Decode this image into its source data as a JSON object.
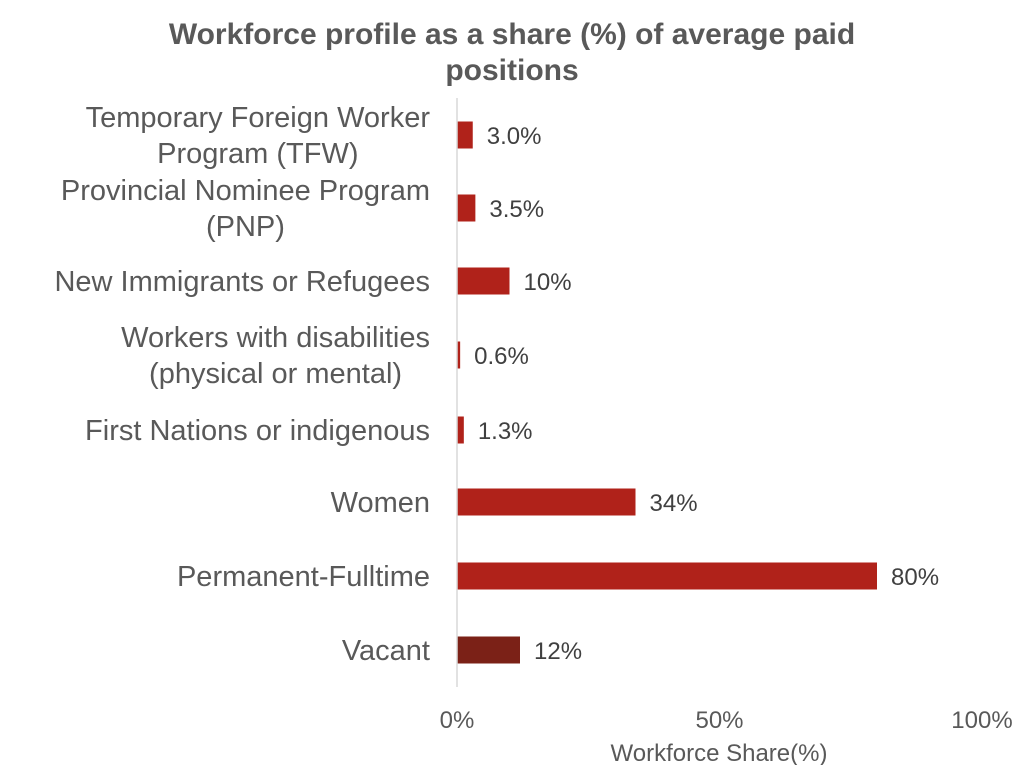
{
  "chart_data": {
    "type": "bar",
    "orientation": "horizontal",
    "title": "Workforce profile as a share (%) of average paid positions",
    "xlabel": "Workforce Share(%)",
    "ylabel": "",
    "xlim": [
      0,
      100
    ],
    "x_ticks": [
      0,
      50,
      100
    ],
    "x_tick_labels": [
      "0%",
      "50%",
      "100%"
    ],
    "grid": false,
    "legend": "none",
    "categories": [
      [
        "Temporary Foreign Worker",
        "Program (TFW)"
      ],
      [
        "Provincial Nominee Program",
        "(PNP)"
      ],
      [
        "New Immigrants or Refugees"
      ],
      [
        "Workers with disabilities",
        "(physical or mental)"
      ],
      [
        "First Nations or indigenous"
      ],
      [
        "Women"
      ],
      [
        "Permanent-Fulltime"
      ],
      [
        "Vacant"
      ]
    ],
    "values": [
      3.0,
      3.5,
      10,
      0.6,
      1.3,
      34,
      80,
      12
    ],
    "value_labels": [
      "3.0%",
      "3.5%",
      "10%",
      "0.6%",
      "1.3%",
      "34%",
      "80%",
      "12%"
    ],
    "bar_colors": [
      "#b0221a",
      "#b0221a",
      "#b0221a",
      "#b0221a",
      "#b0221a",
      "#b0221a",
      "#b0221a",
      "#7b2117"
    ]
  }
}
